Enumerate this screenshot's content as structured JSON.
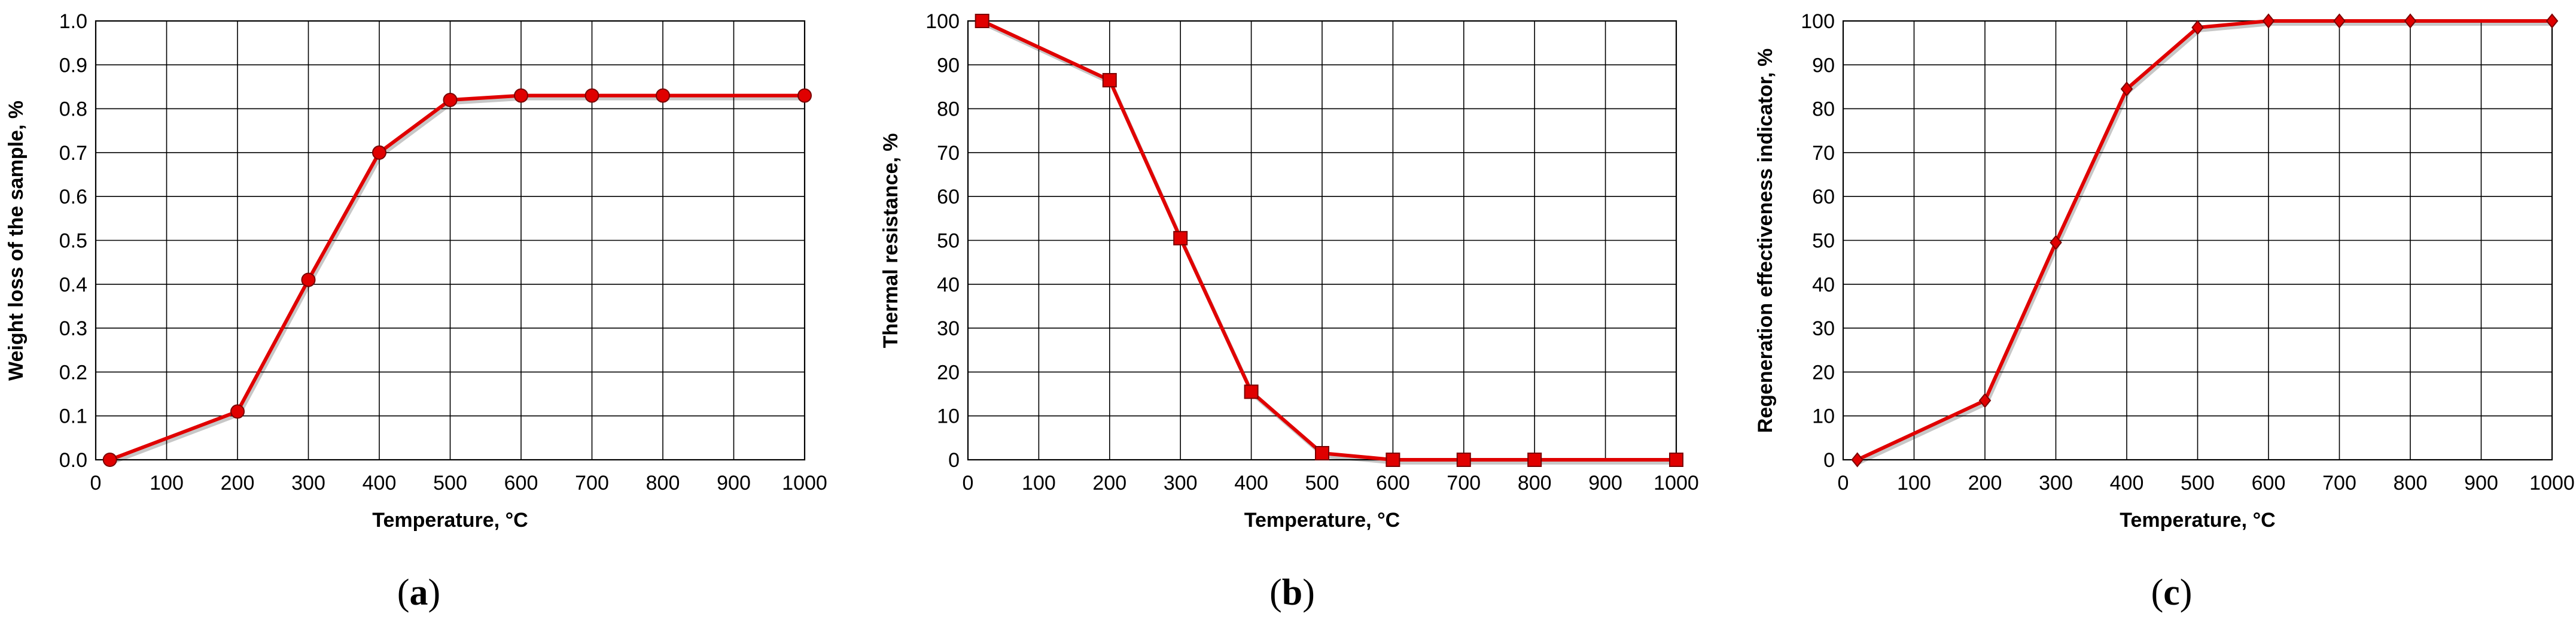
{
  "chart_data": [
    {
      "type": "line",
      "panel_label": "a",
      "xlabel": "Temperature, °C",
      "ylabel": "Weight loss of the sample, %",
      "xlim": [
        0,
        1000
      ],
      "ylim": [
        0,
        1.0
      ],
      "xticks": [
        0,
        100,
        200,
        300,
        400,
        500,
        600,
        700,
        800,
        900,
        1000
      ],
      "yticks": [
        "0.0",
        "0.1",
        "0.2",
        "0.3",
        "0.4",
        "0.5",
        "0.6",
        "0.7",
        "0.8",
        "0.9",
        "1.0"
      ],
      "marker": "circle",
      "color": "#e00000",
      "grid": true,
      "x": [
        20,
        200,
        300,
        400,
        500,
        600,
        700,
        800,
        1000
      ],
      "y": [
        0.0,
        0.11,
        0.41,
        0.7,
        0.82,
        0.83,
        0.83,
        0.83,
        0.83
      ]
    },
    {
      "type": "line",
      "panel_label": "b",
      "xlabel": "Temperature, °C",
      "ylabel": "Thermal resistance, %",
      "xlim": [
        0,
        1000
      ],
      "ylim": [
        0,
        100
      ],
      "xticks": [
        0,
        100,
        200,
        300,
        400,
        500,
        600,
        700,
        800,
        900,
        1000
      ],
      "yticks": [
        "0",
        "10",
        "20",
        "30",
        "40",
        "50",
        "60",
        "70",
        "80",
        "90",
        "100"
      ],
      "marker": "square",
      "color": "#e00000",
      "grid": true,
      "x": [
        20,
        200,
        300,
        400,
        500,
        600,
        700,
        800,
        1000
      ],
      "y": [
        100,
        86.5,
        50.5,
        15.5,
        1.5,
        0,
        0,
        0,
        0
      ]
    },
    {
      "type": "line",
      "panel_label": "c",
      "xlabel": "Temperature, °C",
      "ylabel": "Regeneration effectiveness indicator, %",
      "xlim": [
        0,
        1000
      ],
      "ylim": [
        0,
        100
      ],
      "xticks": [
        0,
        100,
        200,
        300,
        400,
        500,
        600,
        700,
        800,
        900,
        1000
      ],
      "yticks": [
        "0",
        "10",
        "20",
        "30",
        "40",
        "50",
        "60",
        "70",
        "80",
        "90",
        "100"
      ],
      "marker": "diamond",
      "color": "#e00000",
      "grid": true,
      "x": [
        20,
        200,
        300,
        400,
        500,
        600,
        700,
        800,
        1000
      ],
      "y": [
        0,
        13.5,
        49.5,
        84.5,
        98.5,
        100,
        100,
        100,
        100
      ]
    }
  ]
}
